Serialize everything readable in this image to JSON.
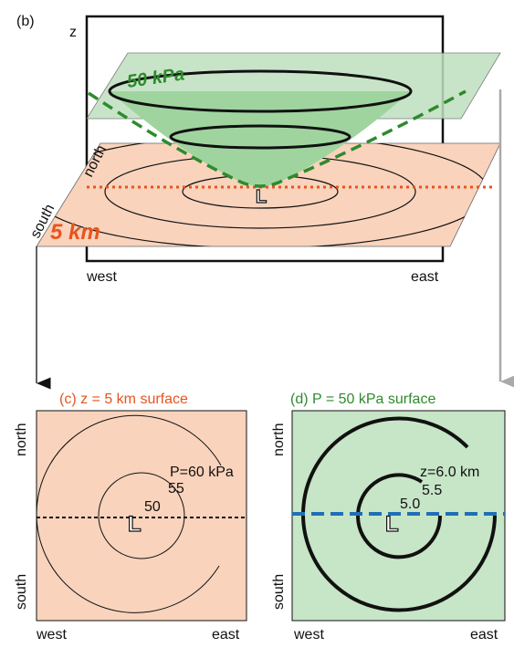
{
  "panel_b": {
    "label": "(b)",
    "z_axis": "z",
    "upper_plane": "50 kPa",
    "lower_plane": "5 km",
    "north": "north",
    "south": "south",
    "low": "L",
    "west": "west",
    "east": "east"
  },
  "panel_c": {
    "title": "(c) z = 5 km surface",
    "north": "north",
    "south": "south",
    "contours": [
      "P=60 kPa",
      "55",
      "50"
    ],
    "low": "L",
    "west": "west",
    "east": "east"
  },
  "panel_d": {
    "title": "(d) P = 50 kPa surface",
    "north": "north",
    "south": "south",
    "contours": [
      "z=6.0 km",
      "5.5",
      "5.0"
    ],
    "low": "L",
    "west": "west",
    "east": "east"
  }
}
